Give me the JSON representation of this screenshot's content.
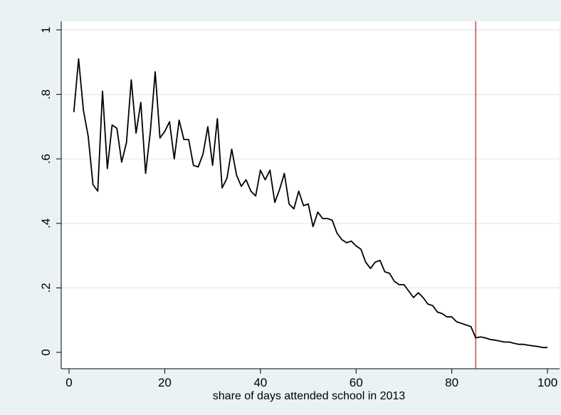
{
  "chart_data": {
    "type": "line",
    "title": "",
    "xlabel": "share of days attended school in 2013",
    "ylabel": "",
    "xlim": [
      0,
      100
    ],
    "ylim": [
      0,
      1
    ],
    "xticks": [
      0,
      20,
      40,
      60,
      80,
      100
    ],
    "yticks": [
      0,
      0.2,
      0.4,
      0.6,
      0.8,
      1
    ],
    "xtick_labels": [
      "0",
      "20",
      "40",
      "60",
      "80",
      "100"
    ],
    "ytick_labels": [
      "0",
      ".2",
      ".4",
      ".6",
      ".8",
      "1"
    ],
    "grid": "horizontal",
    "colors": {
      "background": "#eaf2f3",
      "plot_background": "#ffffff",
      "line": "#000000",
      "reference_line": "#b22222",
      "grid": "#e1e8ea"
    },
    "reference_lines": [
      {
        "axis": "x",
        "value": 85
      }
    ],
    "series": [
      {
        "x": [
          1,
          2,
          3,
          4,
          5,
          6,
          7,
          8,
          9,
          10,
          11,
          12,
          13,
          14,
          15,
          16,
          17,
          18,
          19,
          20,
          21,
          22,
          23,
          24,
          25,
          26,
          27,
          28,
          29,
          30,
          31,
          32,
          33,
          34,
          35,
          36,
          37,
          38,
          39,
          40,
          41,
          42,
          43,
          44,
          45,
          46,
          47,
          48,
          49,
          50,
          51,
          52,
          53,
          54,
          55,
          56,
          57,
          58,
          59,
          60,
          61,
          62,
          63,
          64,
          65,
          66,
          67,
          68,
          69,
          70,
          71,
          72,
          73,
          74,
          75,
          76,
          77,
          78,
          79,
          80,
          81,
          82,
          83,
          84,
          85,
          86,
          87,
          88,
          89,
          90,
          91,
          92,
          93,
          94,
          95,
          96,
          97,
          98,
          99,
          100
        ],
        "y": [
          0.745,
          0.91,
          0.75,
          0.67,
          0.52,
          0.5,
          0.81,
          0.57,
          0.705,
          0.695,
          0.59,
          0.65,
          0.845,
          0.68,
          0.775,
          0.555,
          0.685,
          0.87,
          0.665,
          0.685,
          0.715,
          0.6,
          0.72,
          0.66,
          0.66,
          0.58,
          0.575,
          0.615,
          0.7,
          0.58,
          0.725,
          0.51,
          0.54,
          0.63,
          0.55,
          0.515,
          0.535,
          0.5,
          0.485,
          0.565,
          0.535,
          0.565,
          0.465,
          0.505,
          0.555,
          0.46,
          0.445,
          0.5,
          0.455,
          0.46,
          0.39,
          0.435,
          0.415,
          0.415,
          0.41,
          0.37,
          0.35,
          0.34,
          0.345,
          0.33,
          0.32,
          0.28,
          0.26,
          0.28,
          0.285,
          0.25,
          0.245,
          0.22,
          0.21,
          0.21,
          0.19,
          0.17,
          0.185,
          0.17,
          0.15,
          0.145,
          0.125,
          0.12,
          0.11,
          0.11,
          0.095,
          0.09,
          0.085,
          0.08,
          0.045,
          0.048,
          0.045,
          0.04,
          0.038,
          0.035,
          0.032,
          0.032,
          0.028,
          0.025,
          0.025,
          0.022,
          0.02,
          0.018,
          0.015,
          0.015
        ]
      }
    ]
  }
}
